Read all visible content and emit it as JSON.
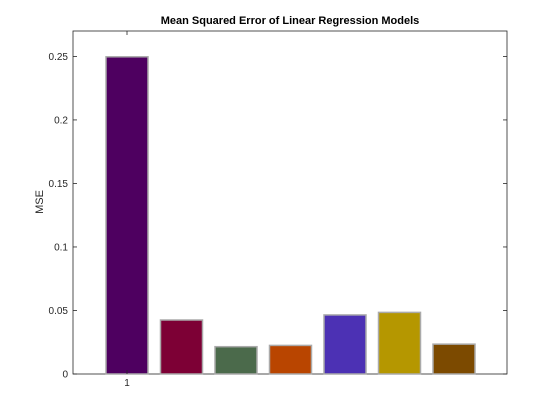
{
  "chart_data": {
    "type": "bar",
    "title": "Mean Squared Error of Linear Regression Models",
    "xlabel": "",
    "ylabel": "MSE",
    "x_tick_labels": [
      "1"
    ],
    "ylim": [
      0,
      0.27
    ],
    "y_ticks": [
      0,
      0.05,
      0.1,
      0.15,
      0.2,
      0.25
    ],
    "y_tick_labels": [
      "0",
      "0.05",
      "0.1",
      "0.15",
      "0.2",
      "0.25"
    ],
    "grid": false,
    "legend": "none",
    "values": [
      0.2497,
      0.0425,
      0.0215,
      0.0225,
      0.0465,
      0.0485,
      0.0235
    ],
    "colors": [
      "#4e0060",
      "#7d0035",
      "#4b6a4b",
      "#b94500",
      "#4c31b4",
      "#b59700",
      "#7c4a00"
    ],
    "bar_edge_color": "#aaaaaa"
  }
}
